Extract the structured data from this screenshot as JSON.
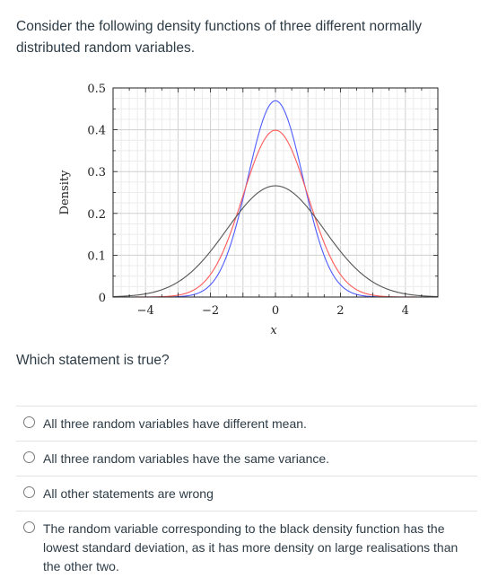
{
  "intro_text": "Consider the following density functions of three different normally distributed random variables.",
  "question_text": "Which statement is true?",
  "options": [
    {
      "label": "All three random variables have different mean."
    },
    {
      "label": "All three random variables have the same variance."
    },
    {
      "label": "All other statements are wrong"
    },
    {
      "label": "The random variable corresponding to the black density function has the lowest standard deviation, as it has more density on large realisations than the other two."
    }
  ],
  "chart_data": {
    "type": "line",
    "xlabel": "x",
    "ylabel": "Density",
    "xlim": [
      -5,
      5
    ],
    "ylim": [
      0,
      0.5
    ],
    "x_ticks": [
      -4,
      -2,
      0,
      2,
      4
    ],
    "y_ticks": [
      0,
      0.1,
      0.2,
      0.3,
      0.4,
      0.5
    ],
    "grid": true,
    "series": [
      {
        "color": "#4f5bff",
        "mean": 0,
        "sd": 0.85
      },
      {
        "color": "#ff5a5a",
        "mean": 0,
        "sd": 1.0
      },
      {
        "color": "#555555",
        "mean": 0,
        "sd": 1.5
      }
    ]
  }
}
